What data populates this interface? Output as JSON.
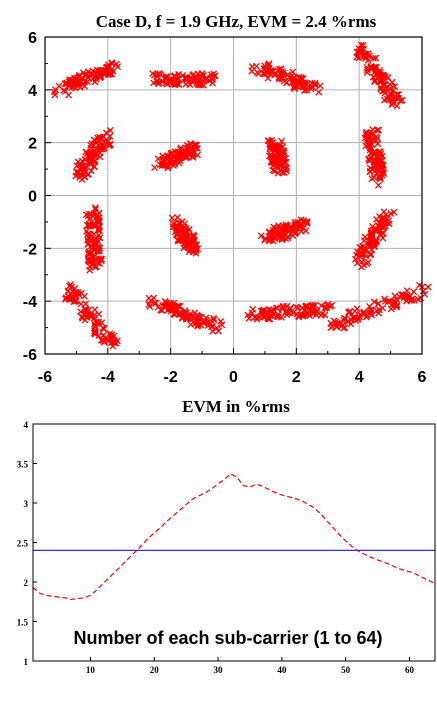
{
  "chart_data": [
    {
      "type": "scatter",
      "title": "Case D, f = 1.9 GHz, EVM = 2.4 %rms",
      "xlim": [
        -6,
        6
      ],
      "ylim": [
        -6,
        6
      ],
      "xticks": [
        -6,
        -4,
        -2,
        0,
        2,
        4,
        6
      ],
      "yticks": [
        -6,
        -4,
        -2,
        0,
        2,
        4,
        6
      ],
      "grid": true,
      "marker": "x",
      "color": "#ff0000",
      "grid_color": "#b0b0b0",
      "clusters": [
        {
          "from": [
            -5.6,
            3.9
          ],
          "to": [
            -3.8,
            4.9
          ]
        },
        {
          "from": [
            -2.4,
            4.4
          ],
          "to": [
            -0.7,
            4.4
          ]
        },
        {
          "from": [
            0.8,
            4.9
          ],
          "to": [
            2.6,
            4.0
          ]
        },
        {
          "from": [
            4.0,
            5.6
          ],
          "to": [
            5.2,
            3.5
          ]
        },
        {
          "from": [
            -4.9,
            0.8
          ],
          "to": [
            -4.0,
            2.3
          ]
        },
        {
          "from": [
            -2.3,
            1.2
          ],
          "to": [
            -1.2,
            1.8
          ]
        },
        {
          "from": [
            1.3,
            2.0
          ],
          "to": [
            1.5,
            1.0
          ]
        },
        {
          "from": [
            4.4,
            2.4
          ],
          "to": [
            4.6,
            0.6
          ]
        },
        {
          "from": [
            -4.5,
            -0.6
          ],
          "to": [
            -4.4,
            -2.7
          ]
        },
        {
          "from": [
            -1.9,
            -1.0
          ],
          "to": [
            -1.3,
            -2.0
          ]
        },
        {
          "from": [
            1.0,
            -1.6
          ],
          "to": [
            2.2,
            -1.1
          ]
        },
        {
          "from": [
            4.0,
            -2.5
          ],
          "to": [
            5.0,
            -0.6
          ]
        },
        {
          "from": [
            -5.3,
            -3.5
          ],
          "to": [
            -3.8,
            -5.7
          ]
        },
        {
          "from": [
            -2.6,
            -4.0
          ],
          "to": [
            -0.5,
            -5.0
          ]
        },
        {
          "from": [
            0.6,
            -4.5
          ],
          "to": [
            3.1,
            -4.3
          ]
        },
        {
          "from": [
            3.2,
            -4.9
          ],
          "to": [
            6.0,
            -3.6
          ]
        }
      ]
    },
    {
      "type": "line",
      "title": "EVM in %rms",
      "xlabel": "Number of each sub-carrier (1 to 64)",
      "xlim": [
        1,
        64
      ],
      "ylim": [
        1,
        4
      ],
      "xticks": [
        10,
        20,
        30,
        40,
        50,
        60
      ],
      "yticks": [
        1,
        1.5,
        2,
        2.5,
        3,
        3.5,
        4
      ],
      "series": [
        {
          "style": "dashed",
          "color": "#ff0000",
          "x": [
            1,
            2,
            3,
            4,
            5,
            6,
            7,
            8,
            9,
            10,
            11,
            12,
            13,
            14,
            15,
            16,
            17,
            18,
            19,
            20,
            21,
            22,
            23,
            24,
            25,
            26,
            27,
            28,
            29,
            30,
            31,
            32,
            33,
            34,
            35,
            36,
            37,
            38,
            39,
            40,
            41,
            42,
            43,
            44,
            45,
            46,
            47,
            48,
            49,
            50,
            51,
            52,
            53,
            54,
            55,
            56,
            57,
            58,
            59,
            60,
            61,
            62,
            63,
            64
          ],
          "y": [
            1.93,
            1.86,
            1.83,
            1.82,
            1.81,
            1.8,
            1.78,
            1.79,
            1.8,
            1.83,
            1.9,
            1.98,
            2.06,
            2.14,
            2.22,
            2.3,
            2.38,
            2.46,
            2.55,
            2.62,
            2.69,
            2.77,
            2.84,
            2.91,
            2.98,
            3.05,
            3.09,
            3.13,
            3.18,
            3.24,
            3.3,
            3.37,
            3.32,
            3.22,
            3.2,
            3.24,
            3.21,
            3.17,
            3.13,
            3.1,
            3.08,
            3.06,
            3.03,
            2.99,
            2.94,
            2.87,
            2.78,
            2.69,
            2.6,
            2.52,
            2.45,
            2.39,
            2.35,
            2.31,
            2.28,
            2.25,
            2.22,
            2.18,
            2.15,
            2.13,
            2.1,
            2.06,
            2.02,
            1.98
          ]
        },
        {
          "style": "solid",
          "color": "#3333cc",
          "x": [
            1,
            64
          ],
          "y": [
            2.4,
            2.4
          ]
        }
      ]
    }
  ]
}
